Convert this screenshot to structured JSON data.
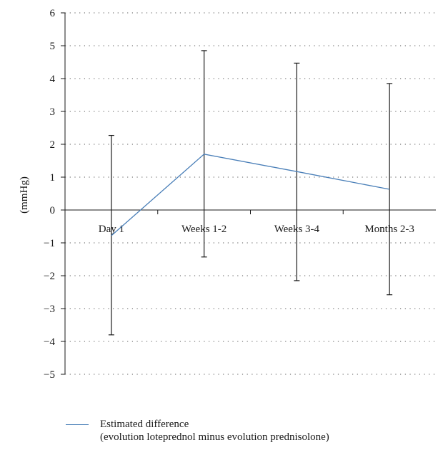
{
  "chart_data": {
    "type": "line",
    "categories": [
      "Day 1",
      "Weeks 1-2",
      "Weeks 3-4",
      "Months 2-3"
    ],
    "series": [
      {
        "name": "Estimated difference",
        "values": [
          -0.78,
          1.7,
          1.17,
          0.63
        ],
        "error_low": [
          -3.8,
          -1.43,
          -2.15,
          -2.58
        ],
        "error_high": [
          2.27,
          4.85,
          4.47,
          3.85
        ],
        "color": "#4a7fb8"
      }
    ],
    "ylabel": "(mmHg)",
    "ylim": [
      -5,
      6
    ],
    "yticks": [
      -5,
      -4,
      -3,
      -2,
      -1,
      0,
      1,
      2,
      3,
      4,
      5,
      6
    ],
    "ytick_labels": [
      "−5",
      "−4",
      "−3",
      "−2",
      "−1",
      "0",
      "1",
      "2",
      "3",
      "4",
      "5",
      "6"
    ],
    "grid": "dotted horizontal",
    "legend": {
      "position": "bottom-left",
      "line1": "Estimated difference",
      "line2": "(evolution loteprednol minus evolution prednisolone)"
    }
  }
}
